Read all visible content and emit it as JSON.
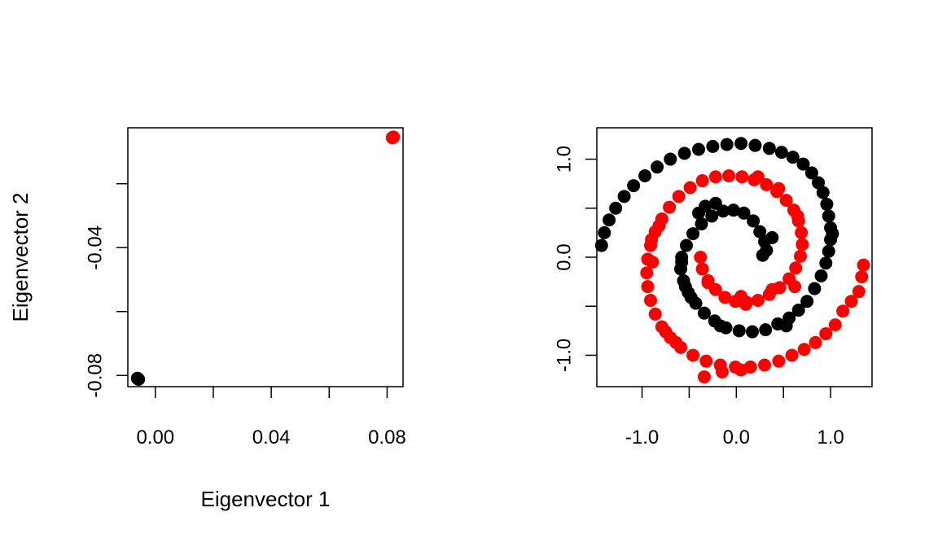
{
  "colors": {
    "cluster_black": "#000000",
    "cluster_red": "#ff0000"
  },
  "chart_data": [
    {
      "type": "scatter",
      "title": "",
      "xlabel": "Eigenvector 1",
      "ylabel": "Eigenvector 2",
      "xlim": [
        -0.0095,
        0.0855
      ],
      "ylim": [
        -0.0835,
        -0.0025
      ],
      "xticks": [
        0.0,
        0.02,
        0.04,
        0.06,
        0.08
      ],
      "xtick_labels": [
        "0.00",
        "",
        "0.04",
        "",
        "0.08"
      ],
      "yticks": [
        -0.08,
        -0.06,
        -0.04,
        -0.02
      ],
      "ytick_labels": [
        "-0.08",
        "",
        "-0.04",
        ""
      ],
      "series": [
        {
          "color": "#000000",
          "points": [
            [
              -0.006,
              -0.081
            ],
            [
              -0.0058,
              -0.0812
            ],
            [
              -0.0062,
              -0.0809
            ]
          ]
        },
        {
          "color": "#ff0000",
          "points": [
            [
              0.082,
              -0.0055
            ],
            [
              0.0822,
              -0.0054
            ],
            [
              0.0818,
              -0.0056
            ]
          ]
        }
      ]
    },
    {
      "type": "scatter",
      "title": "",
      "xlabel": "",
      "ylabel": "",
      "xlim": [
        -1.48,
        1.44
      ],
      "ylim": [
        -1.32,
        1.32
      ],
      "xticks": [
        -1.0,
        -0.5,
        0.0,
        0.5,
        1.0
      ],
      "xtick_labels": [
        "-1.0",
        "",
        "0.0",
        "",
        "1.0"
      ],
      "yticks": [
        -1.0,
        -0.5,
        0.0,
        0.5,
        1.0
      ],
      "ytick_labels": [
        "-1.0",
        "",
        "0.0",
        "",
        "1.0"
      ],
      "series": [
        {
          "color": "#000000",
          "points": [
            [
              0.32,
              0.07
            ],
            [
              0.3,
              0.16
            ],
            [
              0.25,
              0.26
            ],
            [
              0.18,
              0.37
            ],
            [
              0.08,
              0.45
            ],
            [
              -0.03,
              0.48
            ],
            [
              -0.14,
              0.47
            ],
            [
              -0.26,
              0.42
            ],
            [
              -0.37,
              0.34
            ],
            [
              -0.46,
              0.24
            ],
            [
              -0.53,
              0.12
            ],
            [
              -0.58,
              0.0
            ],
            [
              -0.59,
              -0.12
            ],
            [
              -0.56,
              -0.24
            ],
            [
              -0.51,
              -0.36
            ],
            [
              -0.43,
              -0.47
            ],
            [
              -0.34,
              -0.57
            ],
            [
              -0.23,
              -0.65
            ],
            [
              -0.11,
              -0.72
            ],
            [
              0.03,
              -0.75
            ],
            [
              0.17,
              -0.76
            ],
            [
              0.31,
              -0.74
            ],
            [
              0.44,
              -0.68
            ],
            [
              0.56,
              -0.62
            ],
            [
              0.66,
              -0.54
            ],
            [
              0.75,
              -0.45
            ],
            [
              0.83,
              -0.32
            ],
            [
              0.9,
              -0.19
            ],
            [
              0.95,
              -0.06
            ],
            [
              0.98,
              0.06
            ],
            [
              1.0,
              0.18
            ],
            [
              1.0,
              0.3
            ],
            [
              0.98,
              0.42
            ],
            [
              0.96,
              0.54
            ],
            [
              0.92,
              0.66
            ],
            [
              0.87,
              0.76
            ],
            [
              0.8,
              0.86
            ],
            [
              0.71,
              0.95
            ],
            [
              0.6,
              1.02
            ],
            [
              0.48,
              1.07
            ],
            [
              0.35,
              1.11
            ],
            [
              0.2,
              1.14
            ],
            [
              0.05,
              1.16
            ],
            [
              -0.1,
              1.15
            ],
            [
              -0.25,
              1.13
            ],
            [
              -0.4,
              1.1
            ],
            [
              -0.55,
              1.06
            ],
            [
              -0.7,
              1.0
            ],
            [
              -0.84,
              0.92
            ],
            [
              -0.97,
              0.83
            ],
            [
              -1.09,
              0.73
            ],
            [
              -1.19,
              0.62
            ],
            [
              -1.28,
              0.5
            ],
            [
              -1.35,
              0.38
            ],
            [
              -1.4,
              0.25
            ],
            [
              -1.43,
              0.12
            ],
            [
              -0.4,
              0.45
            ],
            [
              -0.33,
              0.52
            ],
            [
              -0.22,
              0.55
            ],
            [
              0.38,
              0.2
            ],
            [
              0.28,
              0.02
            ],
            [
              -0.48,
              -0.41
            ],
            [
              -0.17,
              -0.7
            ],
            [
              -0.58,
              -0.05
            ],
            [
              -0.54,
              -0.3
            ],
            [
              0.53,
              -0.7
            ],
            [
              1.02,
              0.24
            ]
          ]
        },
        {
          "color": "#ff0000",
          "points": [
            [
              -0.38,
              0.0
            ],
            [
              -0.36,
              -0.12
            ],
            [
              -0.3,
              -0.24
            ],
            [
              -0.22,
              -0.33
            ],
            [
              -0.12,
              -0.41
            ],
            [
              -0.01,
              -0.45
            ],
            [
              0.11,
              -0.46
            ],
            [
              0.23,
              -0.44
            ],
            [
              0.35,
              -0.38
            ],
            [
              0.46,
              -0.31
            ],
            [
              0.56,
              -0.22
            ],
            [
              0.63,
              -0.11
            ],
            [
              0.68,
              0.01
            ],
            [
              0.7,
              0.13
            ],
            [
              0.69,
              0.25
            ],
            [
              0.66,
              0.37
            ],
            [
              0.61,
              0.48
            ],
            [
              0.53,
              0.58
            ],
            [
              0.43,
              0.67
            ],
            [
              0.32,
              0.74
            ],
            [
              0.19,
              0.79
            ],
            [
              0.06,
              0.82
            ],
            [
              -0.08,
              0.83
            ],
            [
              -0.22,
              0.82
            ],
            [
              -0.36,
              0.78
            ],
            [
              -0.49,
              0.71
            ],
            [
              -0.61,
              0.62
            ],
            [
              -0.71,
              0.51
            ],
            [
              -0.79,
              0.39
            ],
            [
              -0.86,
              0.26
            ],
            [
              -0.91,
              0.12
            ],
            [
              -0.94,
              -0.02
            ],
            [
              -0.95,
              -0.16
            ],
            [
              -0.94,
              -0.3
            ],
            [
              -0.91,
              -0.44
            ],
            [
              -0.86,
              -0.58
            ],
            [
              -0.79,
              -0.71
            ],
            [
              -0.7,
              -0.82
            ],
            [
              -0.59,
              -0.92
            ],
            [
              -0.46,
              -1.0
            ],
            [
              -0.32,
              -1.06
            ],
            [
              -0.17,
              -1.1
            ],
            [
              -0.01,
              -1.12
            ],
            [
              0.15,
              -1.12
            ],
            [
              0.3,
              -1.1
            ],
            [
              0.45,
              -1.06
            ],
            [
              0.59,
              -1.0
            ],
            [
              0.72,
              -0.94
            ],
            [
              0.84,
              -0.87
            ],
            [
              0.95,
              -0.78
            ],
            [
              1.05,
              -0.69
            ],
            [
              1.13,
              -0.55
            ],
            [
              1.22,
              -0.45
            ],
            [
              1.3,
              -0.35
            ],
            [
              1.33,
              -0.2
            ],
            [
              1.35,
              -0.08
            ],
            [
              -0.34,
              -1.22
            ],
            [
              -0.15,
              -1.17
            ],
            [
              0.05,
              -1.15
            ],
            [
              -0.64,
              -0.87
            ],
            [
              -0.89,
              -0.05
            ],
            [
              -0.82,
              0.32
            ],
            [
              -0.9,
              0.18
            ],
            [
              0.23,
              0.82
            ],
            [
              0.65,
              0.42
            ],
            [
              0.45,
              0.7
            ],
            [
              -0.3,
              -0.26
            ],
            [
              0.05,
              -0.4
            ],
            [
              0.38,
              -0.33
            ],
            [
              0.1,
              -0.48
            ],
            [
              0.62,
              -0.3
            ],
            [
              -0.75,
              -0.76
            ]
          ]
        }
      ]
    }
  ]
}
